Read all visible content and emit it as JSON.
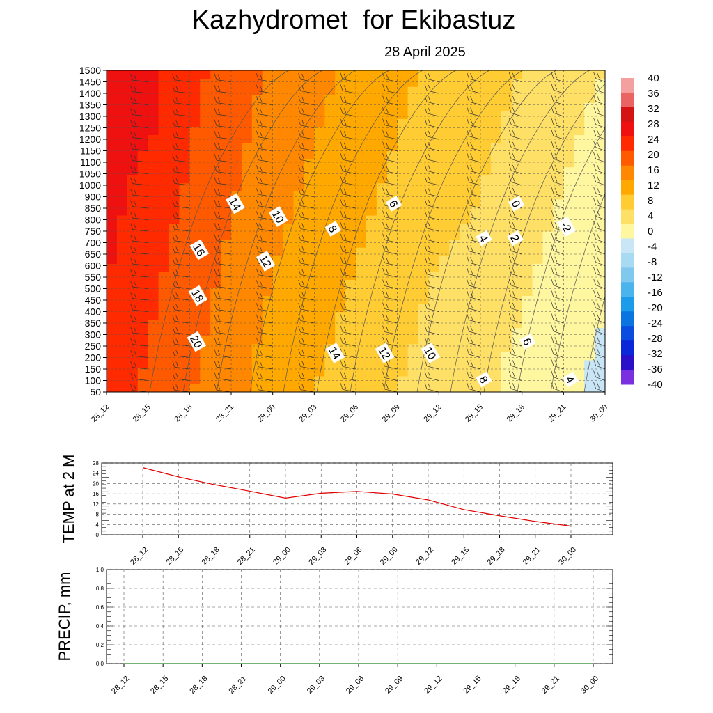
{
  "title": "Kazhydromet  for Ekibastuz",
  "date": "28 April 2025",
  "chart_data": [
    {
      "type": "heatmap",
      "subtype": "time-height cross-section, temperature (filled contours) with wind barbs",
      "time_labels": [
        "28_12",
        "28_15",
        "28_18",
        "28_21",
        "29_00",
        "29_03",
        "29_06",
        "29_09",
        "29_12",
        "29_15",
        "29_18",
        "29_21",
        "30_00"
      ],
      "height_labels": [
        "50",
        "100",
        "150",
        "200",
        "250",
        "300",
        "350",
        "400",
        "450",
        "500",
        "550",
        "600",
        "650",
        "700",
        "750",
        "800",
        "850",
        "900",
        "1000",
        "1050",
        "1100",
        "1150",
        "1200",
        "1250",
        "1300",
        "1350",
        "1400",
        "1450",
        "1500"
      ],
      "colorbar_labels": [
        "40",
        "36",
        "32",
        "28",
        "24",
        "20",
        "16",
        "12",
        "8",
        "4",
        "0",
        "-4",
        "-8",
        "-12",
        "-16",
        "-20",
        "-24",
        "-28",
        "-32",
        "-36",
        "-40"
      ],
      "colorbar_colors": [
        "#f5a0a0",
        "#ea6464",
        "#d41414",
        "#ef1010",
        "#ff2a00",
        "#ff5a00",
        "#ff8800",
        "#ffa800",
        "#ffcc33",
        "#ffe066",
        "#fff7a0",
        "#c8e6f5",
        "#a8daf2",
        "#80c8ee",
        "#4cb4ec",
        "#1c9ce8",
        "#0a74e0",
        "#0a4ce0",
        "#0a28d8",
        "#2a10c8",
        "#7a30e0"
      ],
      "grid_values": [
        [
          24,
          21,
          18,
          15,
          12,
          10,
          8,
          6,
          5,
          3,
          1,
          -1,
          -3
        ],
        [
          25,
          22,
          19,
          16,
          13,
          11,
          9,
          7,
          5,
          3,
          2,
          0,
          -2
        ],
        [
          26,
          23,
          20,
          17,
          14,
          12,
          10,
          8,
          6,
          5,
          3,
          1,
          -1
        ],
        [
          27,
          24,
          21,
          18,
          15,
          13,
          11,
          9,
          7,
          6,
          4,
          2,
          0
        ],
        [
          28,
          26,
          22,
          19,
          16,
          14,
          12,
          10,
          8,
          7,
          5,
          3,
          1
        ],
        [
          29,
          27,
          23,
          20,
          17,
          15,
          13,
          11,
          9,
          8,
          6,
          4,
          2
        ]
      ],
      "contour_labels": [
        {
          "text": "14",
          "x": "28_21",
          "y": "900"
        },
        {
          "text": "10",
          "x": "29_00",
          "y": "850"
        },
        {
          "text": "6",
          "x": "29_09",
          "y": "900"
        },
        {
          "text": "0",
          "x": "29_18",
          "y": "900"
        },
        {
          "text": "8",
          "x": "29_03",
          "y": "800"
        },
        {
          "text": "-2",
          "x": "29_21",
          "y": "800"
        },
        {
          "text": "4",
          "x": "29_15",
          "y": "750"
        },
        {
          "text": "2",
          "x": "29_15",
          "y": "750"
        },
        {
          "text": "16",
          "x": "28_18",
          "y": "700"
        },
        {
          "text": "12",
          "x": "29_00",
          "y": "650"
        },
        {
          "text": "18",
          "x": "28_18",
          "y": "500"
        },
        {
          "text": "20",
          "x": "28_18",
          "y": "300"
        },
        {
          "text": "14",
          "x": "29_03",
          "y": "250"
        },
        {
          "text": "12",
          "x": "29_09",
          "y": "250"
        },
        {
          "text": "10",
          "x": "29_12",
          "y": "250"
        },
        {
          "text": "6",
          "x": "29_18",
          "y": "300"
        },
        {
          "text": "8",
          "x": "29_15",
          "y": "150"
        },
        {
          "text": "4",
          "x": "29_21",
          "y": "150"
        }
      ]
    },
    {
      "type": "line",
      "ylabel": "TEMP at 2 M",
      "x": [
        "28_12",
        "28_15",
        "28_18",
        "28_21",
        "29_00",
        "29_03",
        "29_06",
        "29_09",
        "29_12",
        "29_15",
        "29_18",
        "29_21",
        "30_00"
      ],
      "ytick_labels": [
        "0",
        "4",
        "8",
        "12",
        "16",
        "20",
        "24",
        "28"
      ],
      "ylim": [
        0,
        28
      ],
      "series": [
        {
          "values": [
            26.2,
            22.6,
            19.6,
            17.0,
            14.3,
            16.2,
            16.9,
            15.9,
            13.6,
            9.8,
            7.4,
            5.2,
            3.4
          ],
          "color": "#e00000"
        }
      ]
    },
    {
      "type": "line",
      "ylabel": "PRECIP, mm",
      "x": [
        "28_12",
        "28_15",
        "28_18",
        "28_21",
        "29_00",
        "29_03",
        "29_06",
        "29_09",
        "29_12",
        "29_15",
        "29_18",
        "29_21",
        "30_00"
      ],
      "ytick_labels": [
        "0.0",
        "0.2",
        "0.4",
        "0.6",
        "0.8",
        "1.0"
      ],
      "ylim": [
        0,
        1.0
      ],
      "series": [
        {
          "values": [
            0,
            0,
            0,
            0,
            0,
            0,
            0,
            0,
            0,
            0,
            0,
            0,
            0
          ],
          "color": "#208020"
        }
      ]
    }
  ]
}
